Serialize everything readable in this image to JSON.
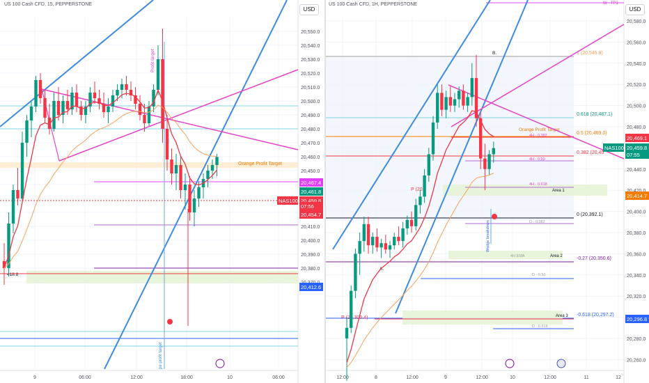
{
  "left": {
    "title": "US 100 Cash CFD, 15, PEPPERSTONE",
    "currency": "USD",
    "y_ticks": [
      "20,550.0",
      "20,540.0",
      "20,530.0",
      "20,520.0",
      "20,510.0",
      "20,500.0",
      "20,490.0",
      "20,480.0",
      "20,470.0",
      "20,460.0",
      "20,450.0",
      "20,440.0",
      "20,430.0",
      "20,420.0",
      "20,410.0",
      "20,400.0",
      "20,390.0",
      "20,380.0",
      "20,370.0"
    ],
    "x_ticks": [
      "9",
      "06:00",
      "12:00",
      "18:00",
      "10",
      "06:00"
    ],
    "labels": {
      "orange_target": "Orange Profit Target",
      "profit_target_v": "Profit target",
      "pe_profit_target": "pe profit target",
      "left_partial": "418.8"
    },
    "price_tags": [
      {
        "text": "20,467.4",
        "color": "#e040fb"
      },
      {
        "text": "20,461.8",
        "color": "#089981"
      },
      {
        "text": "20,459.8",
        "color": "#f23645"
      },
      {
        "text": "07:56",
        "color": "#f23645"
      },
      {
        "text": "20,454.7",
        "color": "#f23645"
      },
      {
        "text": "20,412.6",
        "color": "#2962ff"
      }
    ],
    "symbol_tag": "NAS100",
    "colors": {
      "up": "#089981",
      "down": "#f23645",
      "ema": "#f23645",
      "ema_slow": "#f7a15b",
      "trend": "#3d8be0",
      "pink": "#e842c8"
    }
  },
  "right": {
    "title": "US 100 Cash CFD, 1H, PEPPERSTONE",
    "currency": "USD",
    "y_ticks": [
      "20,580.0",
      "20,560.0",
      "20,540.0",
      "20,520.0",
      "20,500.0",
      "20,480.0",
      "20,460.0",
      "20,440.0",
      "20,420.0",
      "20,400.0",
      "20,380.0",
      "20,360.0",
      "20,340.0",
      "20,320.0",
      "20,300.0",
      "20,280.0",
      "20,260.0"
    ],
    "x_ticks": [
      "12:00",
      "8",
      "12:00",
      "9",
      "12:00",
      "10",
      "12:00",
      "11",
      "12"
    ],
    "fib_levels": [
      {
        "text": "1 (20,545.8)",
        "color": "#f7a15b"
      },
      {
        "text": "0.618 (20,487.1)",
        "color": "#089981"
      },
      {
        "text": "0.5 (20,469.0)",
        "color": "#f57c00"
      },
      {
        "text": "0.382 (20,45",
        "color": "#f23645"
      },
      {
        "text": "0 (20,392.1)",
        "color": "#131722"
      },
      {
        "text": "-0.27 (20,350.6)",
        "color": "#7b1fa2"
      },
      {
        "text": "-0.618 (20,297.2)",
        "color": "#2962ff"
      }
    ],
    "labels": {
      "w_tp1": "W - TP1",
      "b": "B.",
      "a": "A.",
      "orange_target": "Orange Profit Target",
      "h4_0382": "4H - 0.382",
      "h4_050": "4H - 0.50",
      "h4_0618": "4H - 0.618",
      "area1": "Area 1",
      "area2": "Area 2",
      "area3": "Area 3",
      "d_0382": "D - 0.382",
      "d_050": "D - 0.50",
      "d_0618": "D - 0.618",
      "ema_4h": "4H EMA",
      "pivot1": "P (20",
      "pivot2": "P (20,300.4)",
      "wedge": "Wedge breakdown"
    },
    "price_tags": [
      {
        "text": "20,469.1",
        "color": "#f23645"
      },
      {
        "text": "20,459.8",
        "color": "#089981"
      },
      {
        "text": "07:55",
        "color": "#089981"
      },
      {
        "text": "20,414.7",
        "color": "#f57c00"
      },
      {
        "text": "20,296.8",
        "color": "#2962ff"
      }
    ],
    "symbol_tag": "NAS100"
  },
  "chart_data": [
    {
      "type": "candlestick",
      "title": "US 100 Cash CFD, 15, PEPPERSTONE",
      "timeframe": "15",
      "ylim": [
        20366,
        20562
      ],
      "last_price": 20459.8,
      "ohlc_series": [
        {
          "o": 20385,
          "h": 20398,
          "l": 20368,
          "c": 20380
        },
        {
          "o": 20380,
          "h": 20420,
          "l": 20374,
          "c": 20412
        },
        {
          "o": 20412,
          "h": 20440,
          "l": 20405,
          "c": 20436
        },
        {
          "o": 20436,
          "h": 20452,
          "l": 20425,
          "c": 20430
        },
        {
          "o": 20430,
          "h": 20478,
          "l": 20428,
          "c": 20470
        },
        {
          "o": 20470,
          "h": 20490,
          "l": 20460,
          "c": 20486
        },
        {
          "o": 20486,
          "h": 20500,
          "l": 20474,
          "c": 20496
        },
        {
          "o": 20496,
          "h": 20518,
          "l": 20492,
          "c": 20515
        },
        {
          "o": 20515,
          "h": 20520,
          "l": 20498,
          "c": 20502
        },
        {
          "o": 20502,
          "h": 20508,
          "l": 20484,
          "c": 20488
        },
        {
          "o": 20488,
          "h": 20498,
          "l": 20476,
          "c": 20480
        },
        {
          "o": 20480,
          "h": 20506,
          "l": 20478,
          "c": 20500
        },
        {
          "o": 20500,
          "h": 20510,
          "l": 20486,
          "c": 20490
        },
        {
          "o": 20490,
          "h": 20504,
          "l": 20484,
          "c": 20500
        },
        {
          "o": 20500,
          "h": 20508,
          "l": 20490,
          "c": 20494
        },
        {
          "o": 20494,
          "h": 20510,
          "l": 20490,
          "c": 20506
        },
        {
          "o": 20506,
          "h": 20512,
          "l": 20492,
          "c": 20496
        },
        {
          "o": 20496,
          "h": 20500,
          "l": 20486,
          "c": 20490
        },
        {
          "o": 20490,
          "h": 20500,
          "l": 20484,
          "c": 20496
        },
        {
          "o": 20496,
          "h": 20510,
          "l": 20492,
          "c": 20506
        },
        {
          "o": 20506,
          "h": 20514,
          "l": 20498,
          "c": 20502
        },
        {
          "o": 20502,
          "h": 20508,
          "l": 20494,
          "c": 20498
        },
        {
          "o": 20498,
          "h": 20506,
          "l": 20488,
          "c": 20492
        },
        {
          "o": 20492,
          "h": 20502,
          "l": 20484,
          "c": 20496
        },
        {
          "o": 20496,
          "h": 20508,
          "l": 20492,
          "c": 20504
        },
        {
          "o": 20504,
          "h": 20512,
          "l": 20500,
          "c": 20508
        },
        {
          "o": 20508,
          "h": 20516,
          "l": 20502,
          "c": 20512
        },
        {
          "o": 20512,
          "h": 20518,
          "l": 20504,
          "c": 20508
        },
        {
          "o": 20508,
          "h": 20514,
          "l": 20500,
          "c": 20504
        },
        {
          "o": 20504,
          "h": 20510,
          "l": 20494,
          "c": 20498
        },
        {
          "o": 20498,
          "h": 20504,
          "l": 20486,
          "c": 20490
        },
        {
          "o": 20490,
          "h": 20498,
          "l": 20478,
          "c": 20484
        },
        {
          "o": 20484,
          "h": 20500,
          "l": 20482,
          "c": 20496
        },
        {
          "o": 20496,
          "h": 20512,
          "l": 20492,
          "c": 20508
        },
        {
          "o": 20508,
          "h": 20540,
          "l": 20504,
          "c": 20530
        },
        {
          "o": 20530,
          "h": 20552,
          "l": 20470,
          "c": 20480
        },
        {
          "o": 20480,
          "h": 20490,
          "l": 20450,
          "c": 20458
        },
        {
          "o": 20458,
          "h": 20466,
          "l": 20440,
          "c": 20448
        },
        {
          "o": 20448,
          "h": 20462,
          "l": 20436,
          "c": 20454
        },
        {
          "o": 20454,
          "h": 20460,
          "l": 20430,
          "c": 20436
        },
        {
          "o": 20436,
          "h": 20448,
          "l": 20422,
          "c": 20440
        },
        {
          "o": 20440,
          "h": 20446,
          "l": 20414,
          "c": 20420
        },
        {
          "o": 20420,
          "h": 20436,
          "l": 20410,
          "c": 20430
        },
        {
          "o": 20430,
          "h": 20442,
          "l": 20424,
          "c": 20438
        },
        {
          "o": 20438,
          "h": 20448,
          "l": 20430,
          "c": 20444
        },
        {
          "o": 20444,
          "h": 20454,
          "l": 20438,
          "c": 20450
        },
        {
          "o": 20450,
          "h": 20458,
          "l": 20444,
          "c": 20454
        },
        {
          "o": 20454,
          "h": 20462,
          "l": 20446,
          "c": 20459.8
        }
      ]
    },
    {
      "type": "candlestick",
      "title": "US 100 Cash CFD, 1H, PEPPERSTONE",
      "timeframe": "1H",
      "ylim": [
        20252,
        20592
      ],
      "last_price": 20459.8,
      "ohlc_series": [
        {
          "o": 20280,
          "h": 20300,
          "l": 20240,
          "c": 20290
        },
        {
          "o": 20290,
          "h": 20330,
          "l": 20285,
          "c": 20325
        },
        {
          "o": 20325,
          "h": 20365,
          "l": 20318,
          "c": 20360
        },
        {
          "o": 20360,
          "h": 20380,
          "l": 20340,
          "c": 20372
        },
        {
          "o": 20372,
          "h": 20395,
          "l": 20362,
          "c": 20388
        },
        {
          "o": 20388,
          "h": 20395,
          "l": 20360,
          "c": 20368
        },
        {
          "o": 20368,
          "h": 20380,
          "l": 20360,
          "c": 20376
        },
        {
          "o": 20376,
          "h": 20384,
          "l": 20362,
          "c": 20366
        },
        {
          "o": 20366,
          "h": 20374,
          "l": 20356,
          "c": 20370
        },
        {
          "o": 20370,
          "h": 20378,
          "l": 20360,
          "c": 20364
        },
        {
          "o": 20364,
          "h": 20372,
          "l": 20356,
          "c": 20368
        },
        {
          "o": 20368,
          "h": 20380,
          "l": 20364,
          "c": 20376
        },
        {
          "o": 20376,
          "h": 20386,
          "l": 20368,
          "c": 20372
        },
        {
          "o": 20372,
          "h": 20390,
          "l": 20366,
          "c": 20384
        },
        {
          "o": 20384,
          "h": 20396,
          "l": 20378,
          "c": 20392
        },
        {
          "o": 20392,
          "h": 20400,
          "l": 20380,
          "c": 20386
        },
        {
          "o": 20386,
          "h": 20412,
          "l": 20382,
          "c": 20406
        },
        {
          "o": 20406,
          "h": 20420,
          "l": 20398,
          "c": 20414
        },
        {
          "o": 20414,
          "h": 20440,
          "l": 20408,
          "c": 20434
        },
        {
          "o": 20434,
          "h": 20460,
          "l": 20428,
          "c": 20454
        },
        {
          "o": 20454,
          "h": 20490,
          "l": 20448,
          "c": 20484
        },
        {
          "o": 20484,
          "h": 20520,
          "l": 20478,
          "c": 20512
        },
        {
          "o": 20512,
          "h": 20520,
          "l": 20490,
          "c": 20496
        },
        {
          "o": 20496,
          "h": 20514,
          "l": 20488,
          "c": 20508
        },
        {
          "o": 20508,
          "h": 20518,
          "l": 20494,
          "c": 20500
        },
        {
          "o": 20500,
          "h": 20512,
          "l": 20494,
          "c": 20506
        },
        {
          "o": 20506,
          "h": 20518,
          "l": 20498,
          "c": 20514
        },
        {
          "o": 20514,
          "h": 20520,
          "l": 20496,
          "c": 20500
        },
        {
          "o": 20500,
          "h": 20512,
          "l": 20494,
          "c": 20508
        },
        {
          "o": 20508,
          "h": 20540,
          "l": 20500,
          "c": 20526
        },
        {
          "o": 20526,
          "h": 20548,
          "l": 20480,
          "c": 20488
        },
        {
          "o": 20488,
          "h": 20494,
          "l": 20440,
          "c": 20450
        },
        {
          "o": 20450,
          "h": 20464,
          "l": 20420,
          "c": 20440
        },
        {
          "o": 20440,
          "h": 20458,
          "l": 20434,
          "c": 20454
        },
        {
          "o": 20454,
          "h": 20466,
          "l": 20446,
          "c": 20459.8
        }
      ]
    }
  ]
}
